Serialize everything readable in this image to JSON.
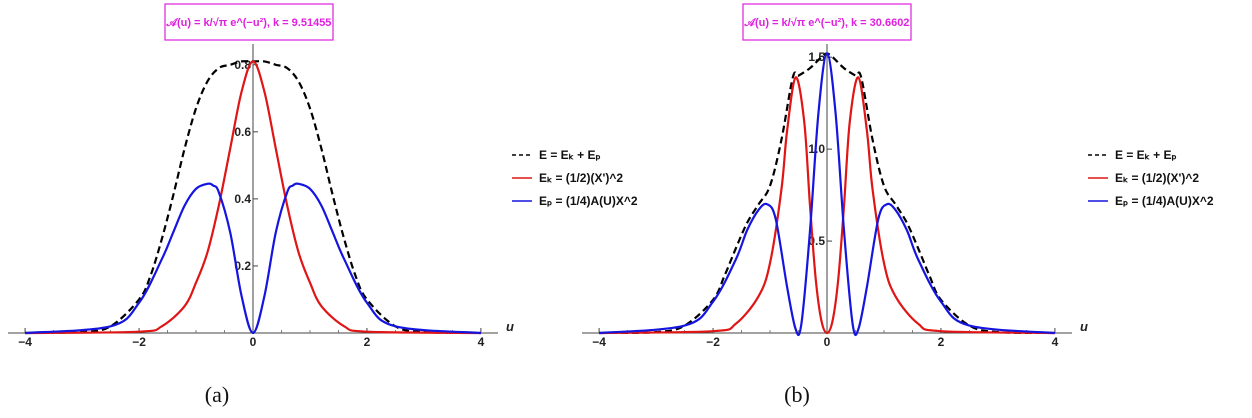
{
  "chart_data": [
    {
      "type": "line",
      "title": "𝒜(u) = k/√π e^(−u²), k = 9.51455",
      "xlabel": "u",
      "ylabel": "",
      "xlim": [
        -4.3,
        4.3
      ],
      "ylim": [
        0,
        0.85
      ],
      "xticks": [
        "−4",
        "−2",
        "0",
        "2",
        "4"
      ],
      "yticks": [
        "0.2",
        "0.4",
        "0.6",
        "0.8"
      ],
      "legend_position": "right",
      "caption": "(a)",
      "series": [
        {
          "name": "E = Eₖ + Eₚ",
          "color": "#000000",
          "style": "dashed",
          "x": [
            -4,
            -3,
            -2.5,
            -2,
            -1.8,
            -1.6,
            -1.4,
            -1.2,
            -1,
            -0.8,
            -0.6,
            -0.4,
            -0.2,
            0,
            0.2,
            0.4,
            0.6,
            0.8,
            1,
            1.2,
            1.4,
            1.6,
            1.8,
            2,
            2.5,
            3,
            4
          ],
          "y": [
            0,
            0.003,
            0.02,
            0.1,
            0.17,
            0.28,
            0.41,
            0.55,
            0.67,
            0.75,
            0.79,
            0.8,
            0.81,
            0.81,
            0.81,
            0.8,
            0.79,
            0.75,
            0.67,
            0.55,
            0.41,
            0.28,
            0.17,
            0.1,
            0.02,
            0.003,
            0
          ]
        },
        {
          "name": "Eₖ = (1/2)(X')^2",
          "color": "#e01515",
          "style": "solid",
          "x": [
            -4,
            -2,
            -1.6,
            -1.2,
            -1,
            -0.8,
            -0.6,
            -0.4,
            -0.2,
            0,
            0.2,
            0.4,
            0.6,
            0.8,
            1,
            1.2,
            1.6,
            2,
            4
          ],
          "y": [
            0,
            0.004,
            0.02,
            0.08,
            0.15,
            0.24,
            0.38,
            0.55,
            0.72,
            0.81,
            0.72,
            0.55,
            0.38,
            0.24,
            0.15,
            0.08,
            0.02,
            0.004,
            0
          ]
        },
        {
          "name": "Eₚ = (1/4)A(U)X^2",
          "color": "#1515e0",
          "style": "solid",
          "x": [
            -4,
            -2.5,
            -2,
            -1.6,
            -1.4,
            -1.2,
            -1,
            -0.8,
            -0.7,
            -0.6,
            -0.4,
            -0.2,
            0,
            0.2,
            0.4,
            0.6,
            0.7,
            0.8,
            1,
            1.2,
            1.4,
            1.6,
            2,
            2.5,
            4
          ],
          "y": [
            0,
            0.02,
            0.09,
            0.22,
            0.3,
            0.38,
            0.43,
            0.445,
            0.44,
            0.42,
            0.3,
            0.11,
            0,
            0.11,
            0.3,
            0.42,
            0.44,
            0.445,
            0.43,
            0.38,
            0.3,
            0.22,
            0.09,
            0.02,
            0
          ]
        }
      ]
    },
    {
      "type": "line",
      "title": "𝒜(u) = k/√π e^(−u²), k = 30.6602",
      "xlabel": "u",
      "ylabel": "",
      "xlim": [
        -4.3,
        4.3
      ],
      "ylim": [
        0,
        1.55
      ],
      "xticks": [
        "−4",
        "−2",
        "0",
        "2",
        "4"
      ],
      "yticks": [
        "0.5",
        "1.0",
        "1.5"
      ],
      "legend_position": "right",
      "caption": "(b)",
      "series": [
        {
          "name": "E = Eₖ + Eₚ",
          "color": "#000000",
          "style": "dashed",
          "x": [
            -4,
            -3,
            -2.5,
            -2,
            -1.8,
            -1.6,
            -1.4,
            -1.2,
            -1,
            -0.8,
            -0.6,
            -0.5,
            -0.3,
            -0.1,
            0,
            0.1,
            0.3,
            0.5,
            0.6,
            0.8,
            1,
            1.2,
            1.4,
            1.6,
            1.8,
            2,
            2.5,
            3,
            4
          ],
          "y": [
            0,
            0.005,
            0.04,
            0.18,
            0.31,
            0.46,
            0.6,
            0.7,
            0.8,
            1.05,
            1.39,
            1.4,
            1.44,
            1.5,
            1.52,
            1.5,
            1.44,
            1.4,
            1.39,
            1.05,
            0.8,
            0.7,
            0.6,
            0.46,
            0.31,
            0.18,
            0.04,
            0.005,
            0
          ]
        },
        {
          "name": "Eₖ = (1/2)(X')^2",
          "color": "#e01515",
          "style": "solid",
          "x": [
            -4,
            -2,
            -1.6,
            -1.2,
            -1,
            -0.8,
            -0.7,
            -0.55,
            -0.4,
            -0.3,
            -0.2,
            -0.1,
            0,
            0.1,
            0.2,
            0.3,
            0.4,
            0.55,
            0.7,
            0.8,
            1,
            1.2,
            1.6,
            2,
            4
          ],
          "y": [
            0,
            0.01,
            0.05,
            0.2,
            0.38,
            0.78,
            1.1,
            1.39,
            1.15,
            0.7,
            0.3,
            0.07,
            0,
            0.07,
            0.3,
            0.7,
            1.15,
            1.39,
            1.1,
            0.78,
            0.38,
            0.2,
            0.05,
            0.01,
            0
          ]
        },
        {
          "name": "Eₚ = (1/4)A(U)X^2",
          "color": "#1515e0",
          "style": "solid",
          "x": [
            -4,
            -2.5,
            -2,
            -1.6,
            -1.4,
            -1.2,
            -1.05,
            -0.9,
            -0.7,
            -0.55,
            -0.45,
            -0.3,
            -0.15,
            0,
            0.15,
            0.3,
            0.45,
            0.55,
            0.7,
            0.9,
            1.05,
            1.2,
            1.4,
            1.6,
            2,
            2.5,
            4
          ],
          "y": [
            0,
            0.04,
            0.17,
            0.4,
            0.56,
            0.67,
            0.7,
            0.62,
            0.25,
            0.02,
            0.05,
            0.55,
            1.2,
            1.52,
            1.2,
            0.55,
            0.05,
            0.02,
            0.25,
            0.62,
            0.7,
            0.67,
            0.56,
            0.4,
            0.17,
            0.04,
            0
          ]
        }
      ]
    }
  ]
}
